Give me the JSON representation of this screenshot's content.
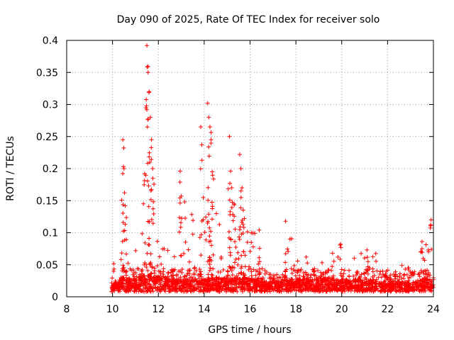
{
  "chart_data": {
    "type": "scatter",
    "title": "Day 090 of 2025, Rate Of TEC Index for receiver solo",
    "xlabel": "GPS time / hours",
    "ylabel": "ROTI / TECUs",
    "xlim": [
      8,
      24
    ],
    "ylim": [
      0,
      0.4
    ],
    "xticks": [
      "8",
      "10",
      "12",
      "14",
      "16",
      "18",
      "20",
      "22",
      "24"
    ],
    "yticks": [
      "0",
      "0.05",
      "0.1",
      "0.15",
      "0.2",
      "0.25",
      "0.3",
      "0.35",
      "0.4"
    ],
    "grid": true,
    "marker": "+",
    "color": "#ff0000",
    "series": [
      {
        "name": "ROTI",
        "peaks": [
          {
            "x": 10.45,
            "y": 0.245
          },
          {
            "x": 10.5,
            "y": 0.2
          },
          {
            "x": 10.55,
            "y": 0.142
          },
          {
            "x": 11.4,
            "y": 0.192
          },
          {
            "x": 11.5,
            "y": 0.392
          },
          {
            "x": 11.55,
            "y": 0.35
          },
          {
            "x": 11.6,
            "y": 0.32
          },
          {
            "x": 11.65,
            "y": 0.28
          },
          {
            "x": 11.7,
            "y": 0.245
          },
          {
            "x": 11.75,
            "y": 0.2
          },
          {
            "x": 12.95,
            "y": 0.196
          },
          {
            "x": 13.0,
            "y": 0.157
          },
          {
            "x": 13.15,
            "y": 0.148
          },
          {
            "x": 13.85,
            "y": 0.265
          },
          {
            "x": 13.9,
            "y": 0.213
          },
          {
            "x": 14.15,
            "y": 0.302
          },
          {
            "x": 14.2,
            "y": 0.28
          },
          {
            "x": 14.25,
            "y": 0.265
          },
          {
            "x": 14.3,
            "y": 0.245
          },
          {
            "x": 14.35,
            "y": 0.195
          },
          {
            "x": 15.1,
            "y": 0.25
          },
          {
            "x": 15.15,
            "y": 0.196
          },
          {
            "x": 15.2,
            "y": 0.17
          },
          {
            "x": 15.3,
            "y": 0.145
          },
          {
            "x": 15.55,
            "y": 0.222
          },
          {
            "x": 15.6,
            "y": 0.2
          },
          {
            "x": 15.65,
            "y": 0.17
          },
          {
            "x": 15.75,
            "y": 0.122
          },
          {
            "x": 16.4,
            "y": 0.104
          },
          {
            "x": 17.55,
            "y": 0.118
          },
          {
            "x": 18.45,
            "y": 0.062
          },
          {
            "x": 19.6,
            "y": 0.068
          },
          {
            "x": 19.95,
            "y": 0.082
          },
          {
            "x": 21.1,
            "y": 0.073
          },
          {
            "x": 22.9,
            "y": 0.045
          },
          {
            "x": 23.5,
            "y": 0.075
          },
          {
            "x": 23.9,
            "y": 0.12
          }
        ],
        "activity_bands": [
          {
            "from": 9.95,
            "to": 10.3,
            "typical": 0.012,
            "max": 0.045
          },
          {
            "from": 10.3,
            "to": 11.0,
            "typical": 0.022,
            "max": 0.095
          },
          {
            "from": 11.0,
            "to": 12.0,
            "typical": 0.025,
            "max": 0.11
          },
          {
            "from": 12.0,
            "to": 13.4,
            "typical": 0.02,
            "max": 0.075
          },
          {
            "from": 13.4,
            "to": 14.8,
            "typical": 0.022,
            "max": 0.13
          },
          {
            "from": 14.8,
            "to": 16.6,
            "typical": 0.022,
            "max": 0.1
          },
          {
            "from": 16.6,
            "to": 17.3,
            "typical": 0.016,
            "max": 0.04
          },
          {
            "from": 17.3,
            "to": 18.0,
            "typical": 0.02,
            "max": 0.09
          },
          {
            "from": 18.0,
            "to": 21.6,
            "typical": 0.02,
            "max": 0.06
          },
          {
            "from": 21.6,
            "to": 23.3,
            "typical": 0.016,
            "max": 0.045
          },
          {
            "from": 23.3,
            "to": 24.0,
            "typical": 0.02,
            "max": 0.1
          }
        ]
      }
    ]
  }
}
